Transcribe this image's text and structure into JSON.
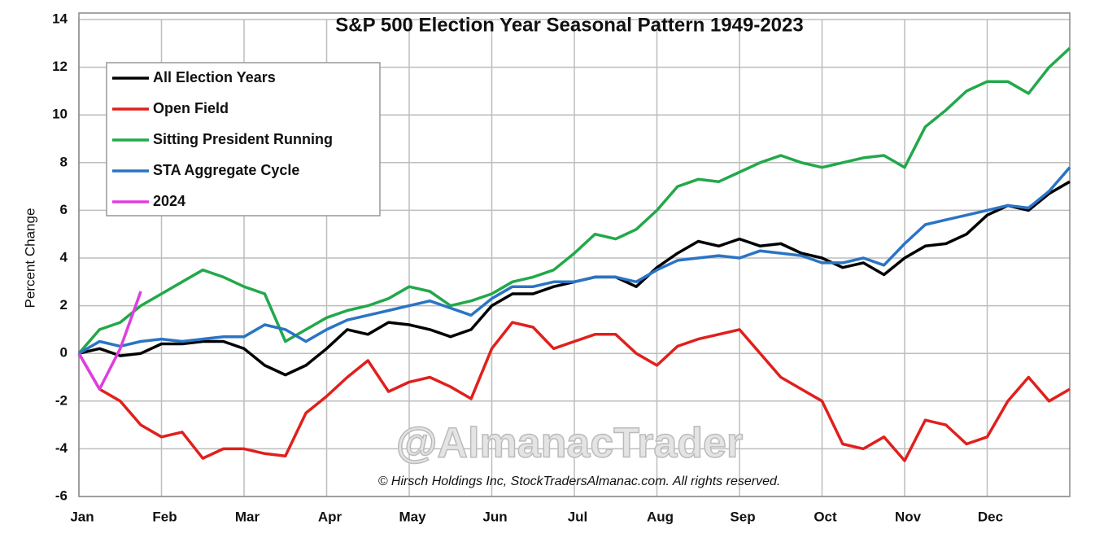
{
  "chart_data": {
    "type": "line",
    "title": "S&P 500 Election Year Seasonal Pattern 1949-2023",
    "y_label": "Percent Change",
    "watermark": "@AlmanacTrader",
    "copyright": "© Hirsch Holdings Inc, StockTradersAlmanac.com. All rights reserved.",
    "categories": [
      "Jan",
      null,
      null,
      null,
      "Feb",
      null,
      null,
      null,
      "Mar",
      null,
      null,
      null,
      "Apr",
      null,
      null,
      null,
      "May",
      null,
      null,
      null,
      "Jun",
      null,
      null,
      null,
      "Jul",
      null,
      null,
      null,
      "Aug",
      null,
      null,
      null,
      "Sep",
      null,
      null,
      null,
      "Oct",
      null,
      null,
      null,
      "Nov",
      null,
      null,
      null,
      "Dec",
      null,
      null,
      null,
      null
    ],
    "series": [
      {
        "name": "All Election Years",
        "color": "#000000",
        "values": [
          0,
          0.2,
          -0.1,
          0,
          0.4,
          0.4,
          0.5,
          0.5,
          0.2,
          -0.5,
          -0.9,
          -0.5,
          0.2,
          1.0,
          0.8,
          1.3,
          1.2,
          1.0,
          0.7,
          1.0,
          2.0,
          2.5,
          2.5,
          2.8,
          3.0,
          3.2,
          3.2,
          2.8,
          3.6,
          4.2,
          4.7,
          4.5,
          4.8,
          4.5,
          4.6,
          4.2,
          4.0,
          3.6,
          3.8,
          3.3,
          4.0,
          4.5,
          4.6,
          5.0,
          5.8,
          6.2,
          6.0,
          6.7,
          7.2
        ]
      },
      {
        "name": "Open Field",
        "color": "#e0201c",
        "values": [
          0,
          -1.5,
          -2.0,
          -3.0,
          -3.5,
          -3.3,
          -4.4,
          -4.0,
          -4.0,
          -4.2,
          -4.3,
          -2.5,
          -1.8,
          -1.0,
          -0.3,
          -1.6,
          -1.2,
          -1.0,
          -1.4,
          -1.9,
          0.2,
          1.3,
          1.1,
          0.2,
          0.5,
          0.8,
          0.8,
          0.0,
          -0.5,
          0.3,
          0.6,
          0.8,
          1.0,
          0.0,
          -1.0,
          -1.5,
          -2.0,
          -3.8,
          -4.0,
          -3.5,
          -4.5,
          -2.8,
          -3.0,
          -3.8,
          -3.5,
          -2.0,
          -1.0,
          -2.0,
          -1.5
        ]
      },
      {
        "name": "Sitting President Running",
        "color": "#22a84a",
        "values": [
          0,
          1.0,
          1.3,
          2.0,
          2.5,
          3.0,
          3.5,
          3.2,
          2.8,
          2.5,
          0.5,
          1.0,
          1.5,
          1.8,
          2.0,
          2.3,
          2.8,
          2.6,
          2.0,
          2.2,
          2.5,
          3.0,
          3.2,
          3.5,
          4.2,
          5.0,
          4.8,
          5.2,
          6.0,
          7.0,
          7.3,
          7.2,
          7.6,
          8.0,
          8.3,
          8.0,
          7.8,
          8.0,
          8.2,
          8.3,
          7.8,
          9.5,
          10.2,
          11.0,
          11.4,
          11.4,
          10.9,
          12.0,
          12.8
        ]
      },
      {
        "name": "STA Aggregate Cycle",
        "color": "#2a74c4",
        "values": [
          0,
          0.5,
          0.3,
          0.5,
          0.6,
          0.5,
          0.6,
          0.7,
          0.7,
          1.2,
          1.0,
          0.5,
          1.0,
          1.4,
          1.6,
          1.8,
          2.0,
          2.2,
          1.9,
          1.6,
          2.3,
          2.8,
          2.8,
          3.0,
          3.0,
          3.2,
          3.2,
          3.0,
          3.5,
          3.9,
          4.0,
          4.1,
          4.0,
          4.3,
          4.2,
          4.1,
          3.8,
          3.8,
          4.0,
          3.7,
          4.6,
          5.4,
          5.6,
          5.8,
          6.0,
          6.2,
          6.1,
          6.8,
          7.8
        ]
      },
      {
        "name": "2024",
        "color": "#e03ce0",
        "values": [
          0,
          -1.5,
          0.2,
          2.6,
          null,
          null,
          null,
          null,
          null,
          null,
          null,
          null,
          null,
          null,
          null,
          null,
          null,
          null,
          null,
          null,
          null,
          null,
          null,
          null,
          null,
          null,
          null,
          null,
          null,
          null,
          null,
          null,
          null,
          null,
          null,
          null,
          null,
          null,
          null,
          null,
          null,
          null,
          null,
          null,
          null,
          null,
          null,
          null,
          null
        ]
      }
    ],
    "ylim": [
      -6,
      14
    ],
    "yticks": [
      -6,
      -4,
      -2,
      0,
      2,
      4,
      6,
      8,
      10,
      12,
      14
    ],
    "grid": true,
    "legend": "upper left"
  }
}
